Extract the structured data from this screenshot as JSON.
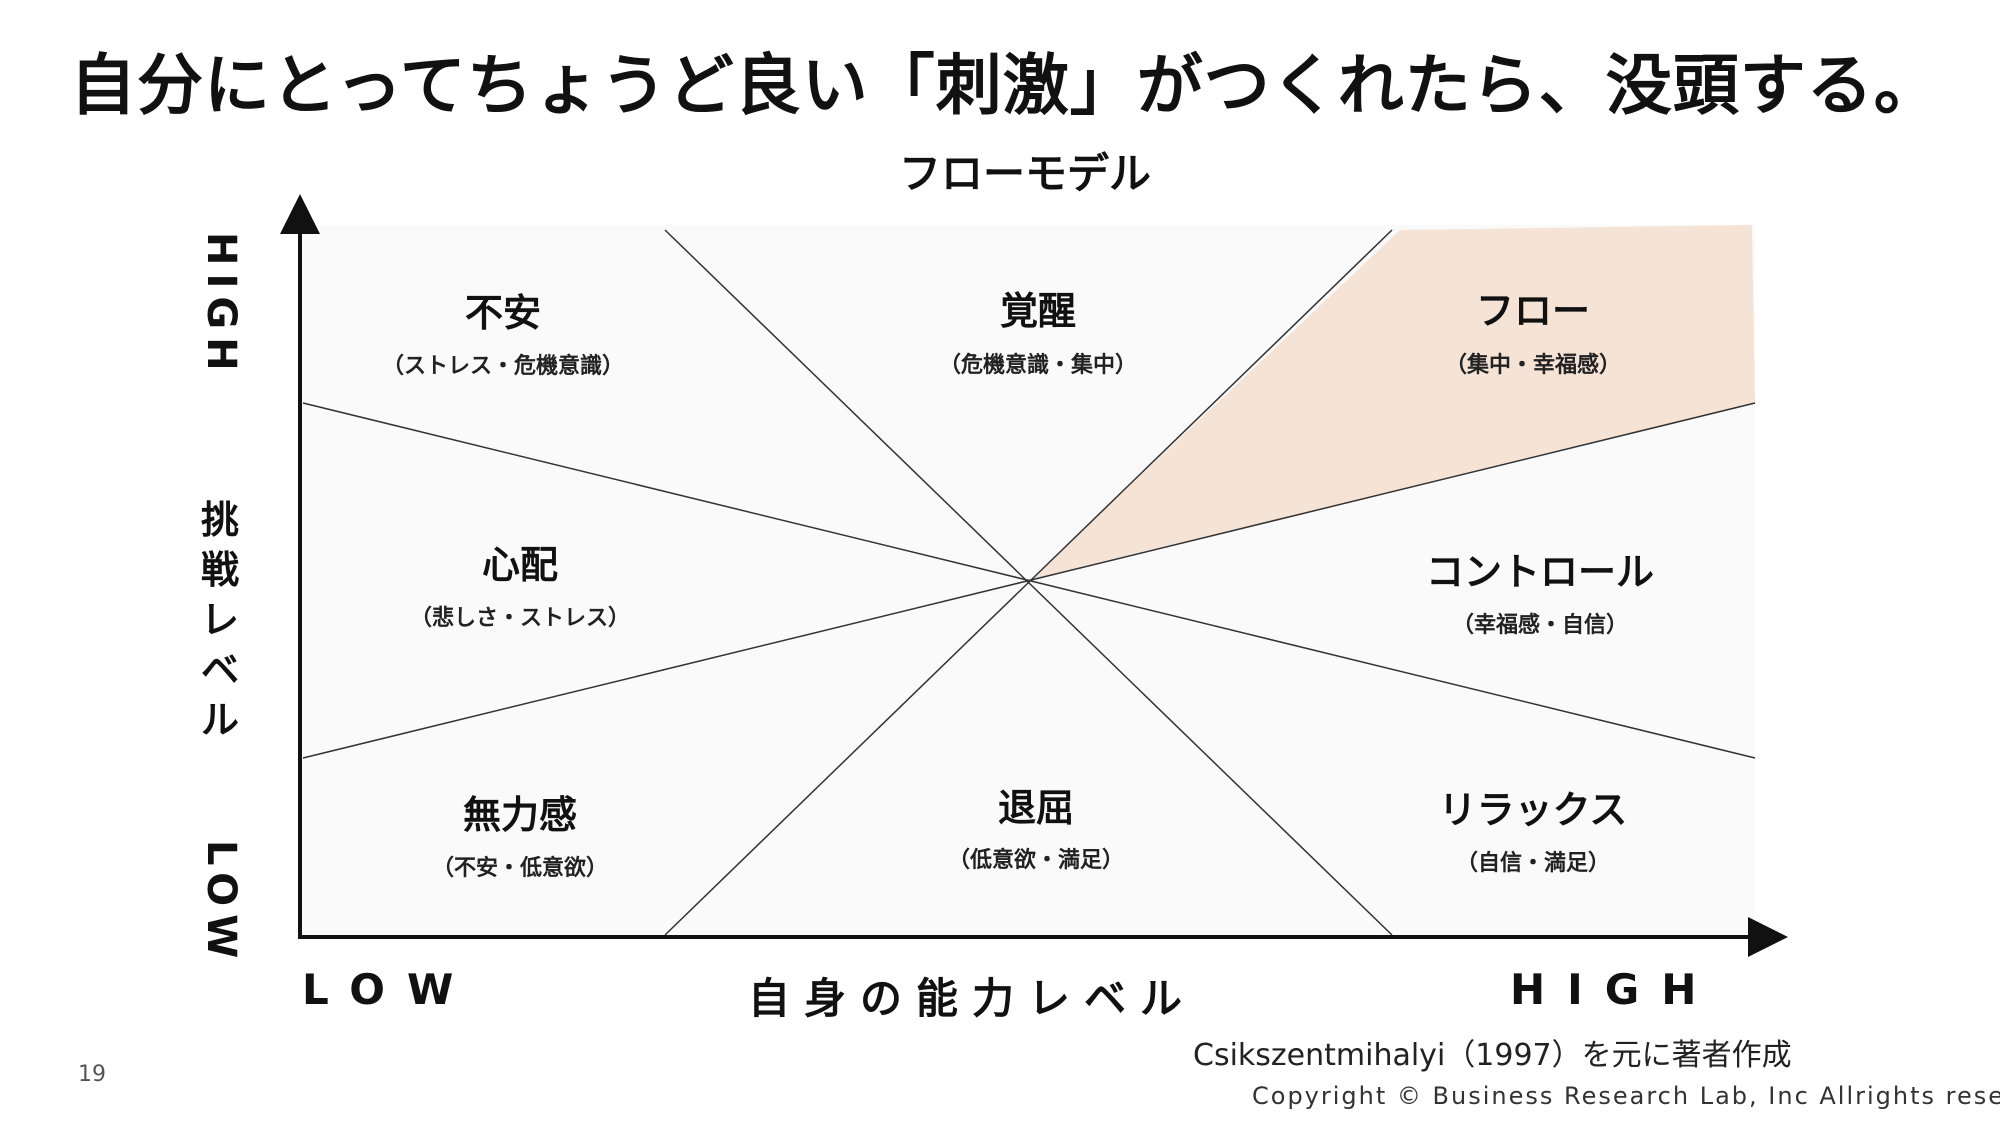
{
  "title": "自分にとってちょうど良い「刺激」がつくれたら、没頭する。",
  "diagram": {
    "title": "フローモデル",
    "y_axis": {
      "high": "HIGH",
      "low": "LOW",
      "label_chars": [
        "挑",
        "戦",
        "レ",
        "ベ",
        "ル"
      ]
    },
    "x_axis": {
      "low": "LOW",
      "label": "自身の能力レベル",
      "high": "HIGH"
    },
    "regions": {
      "anxiety": {
        "name": "不安",
        "desc": "（ストレス・危機意識）"
      },
      "arousal": {
        "name": "覚醒",
        "desc": "（危機意識・集中）"
      },
      "flow": {
        "name": "フロー",
        "desc": "（集中・幸福感）",
        "color": "#f5e3d6"
      },
      "worry": {
        "name": "心配",
        "desc": "（悲しさ・ストレス）"
      },
      "control": {
        "name": "コントロール",
        "desc": "（幸福感・自信）"
      },
      "apathy": {
        "name": "無力感",
        "desc": "（不安・低意欲）"
      },
      "boredom": {
        "name": "退屈",
        "desc": "（低意欲・満足）"
      },
      "relaxation": {
        "name": "リラックス",
        "desc": "（自信・満足）"
      }
    },
    "plot_background": "#fafafa"
  },
  "source": "Csikszentmihalyi（1997）を元に著者作成",
  "copyright": "Copyright © Business Research Lab, Inc Allrights reserved.",
  "page_number": "19"
}
